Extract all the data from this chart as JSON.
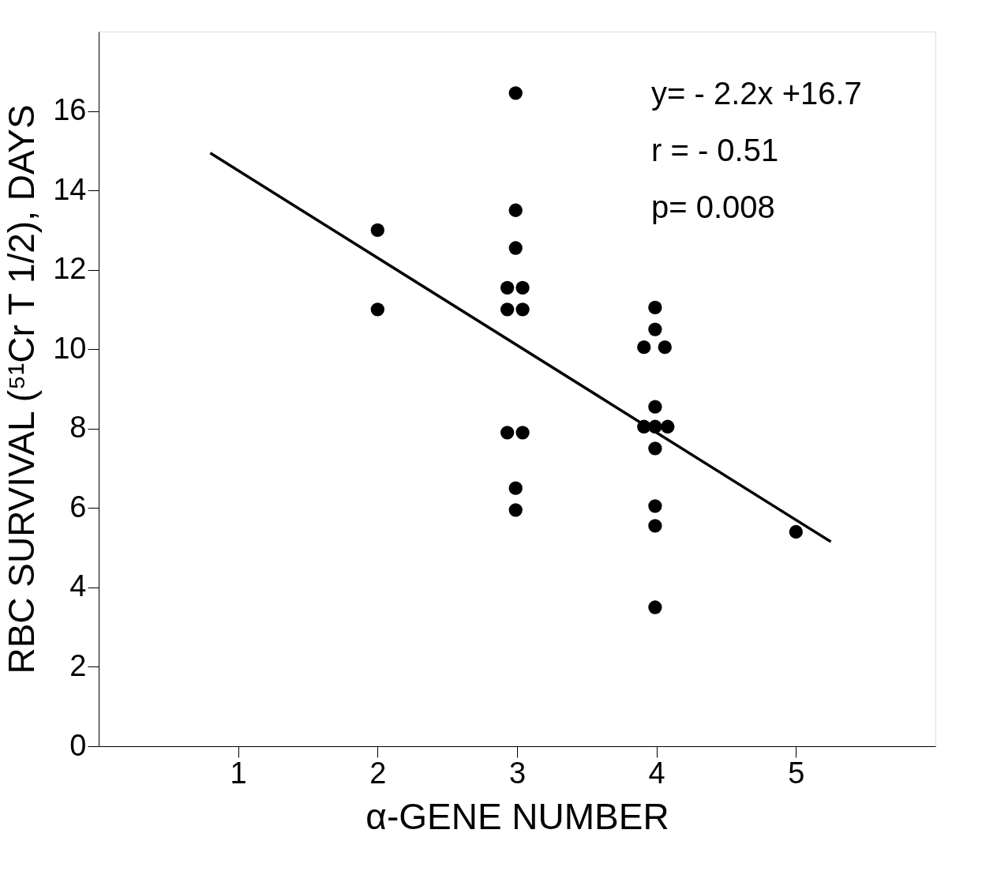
{
  "chart_data": {
    "type": "scatter",
    "xlabel": "α-GENE NUMBER",
    "ylabel": "RBC SURVIVAL (⁵¹Cr T 1/2), DAYS",
    "xlim": [
      0,
      6
    ],
    "ylim": [
      0,
      18
    ],
    "xticks": [
      1,
      2,
      3,
      4,
      5
    ],
    "yticks": [
      0,
      2,
      4,
      6,
      8,
      10,
      12,
      14,
      16
    ],
    "grid": false,
    "annotations": [
      "y= - 2.2x +16.7",
      "r = - 0.51",
      "p=   0.008"
    ],
    "series": [
      {
        "marker": "circle",
        "color": "#000000",
        "x": [
          2,
          2,
          2.99,
          2.99,
          2.99,
          2.93,
          3.04,
          2.93,
          3.04,
          2.93,
          3.04,
          2.99,
          2.99,
          3.99,
          3.99,
          3.91,
          4.06,
          3.99,
          3.91,
          3.99,
          4.08,
          3.99,
          3.99,
          3.99,
          3.99,
          5
        ],
        "values": [
          13.0,
          11.0,
          16.45,
          13.5,
          12.55,
          11.55,
          11.55,
          11.0,
          11.0,
          7.9,
          7.9,
          6.5,
          5.95,
          11.05,
          10.5,
          10.05,
          10.05,
          8.55,
          8.05,
          8.05,
          8.05,
          7.5,
          6.05,
          5.55,
          3.5,
          5.4
        ]
      },
      {
        "type": "line",
        "color": "#000000",
        "x": [
          0.8,
          5.25
        ],
        "values": [
          14.94,
          5.15
        ]
      }
    ]
  }
}
